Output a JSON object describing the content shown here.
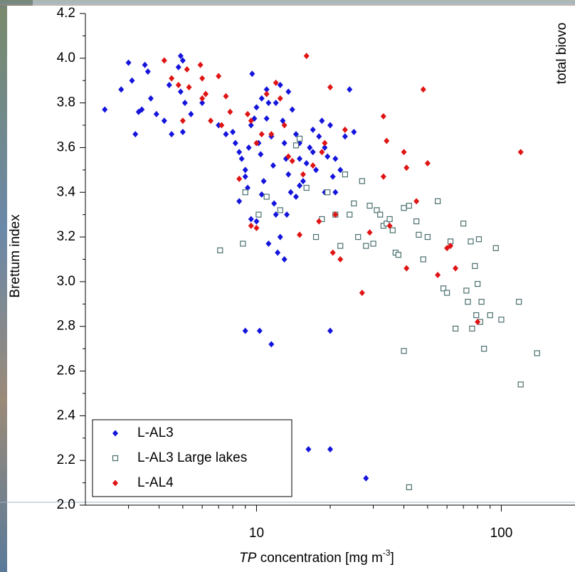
{
  "chart_data": {
    "type": "scatter",
    "ylabel": "Brettum index",
    "xlabel": {
      "italic": "TP",
      "text": " concentration [mg m",
      "sup": "-3",
      "end": "]"
    },
    "side_text": "total biovo",
    "log_x": true,
    "xlim": [
      2,
      200
    ],
    "xticks": [
      10,
      100
    ],
    "ylim": [
      2.0,
      4.2
    ],
    "yticks": [
      {
        "value": 2.0,
        "label": "2.0"
      },
      2.2,
      2.4,
      2.6,
      2.8,
      {
        "value": 3.0,
        "label": "3.0"
      },
      3.2,
      3.4,
      3.6,
      3.8,
      {
        "value": 4.0,
        "label": "4.0"
      },
      4.2
    ],
    "legend": "bottom-left",
    "series": [
      {
        "name": "L-AL3",
        "color": "#1414dc",
        "marker": "diamond",
        "x": [
          2.4,
          2.8,
          3.0,
          3.1,
          3.2,
          3.3,
          3.4,
          3.5,
          3.6,
          3.7,
          3.9,
          4.2,
          4.4,
          4.5,
          4.8,
          4.9,
          4.9,
          5.0,
          5.0,
          5.1,
          5.4,
          6.0,
          7.0,
          7.5,
          8.0,
          8.2,
          8.5,
          8.7,
          9.0,
          9.0,
          9.2,
          9.3,
          9.5,
          9.6,
          9.8,
          10.0,
          10.2,
          10.4,
          10.5,
          10.7,
          11,
          11.2,
          11.5,
          11.7,
          11.8,
          12,
          12.2,
          12.5,
          12.8,
          13,
          13.2,
          13.5,
          13.8,
          14,
          14.5,
          15,
          15.5,
          16,
          16.5,
          17,
          17.5,
          18,
          18.5,
          19,
          19.5,
          20,
          20.5,
          21,
          22,
          23,
          24,
          25,
          9,
          10.3,
          11.5,
          20,
          16.3,
          20,
          28,
          10,
          12.5,
          13,
          11.2,
          13.3,
          14.5,
          15,
          12,
          13.5,
          15,
          17,
          19,
          21,
          10.5,
          11,
          8.5,
          9.5
        ],
        "values": [
          3.77,
          3.86,
          3.98,
          3.9,
          3.66,
          3.76,
          3.77,
          3.97,
          3.94,
          3.82,
          3.75,
          3.72,
          3.88,
          3.66,
          3.96,
          4.01,
          3.85,
          3.99,
          3.67,
          3.8,
          3.75,
          3.8,
          3.7,
          3.66,
          3.67,
          3.62,
          3.58,
          3.55,
          3.5,
          3.47,
          3.42,
          3.6,
          3.7,
          3.93,
          3.73,
          3.78,
          3.62,
          3.57,
          3.39,
          3.45,
          3.86,
          3.8,
          3.65,
          3.52,
          3.35,
          3.3,
          3.13,
          3.88,
          3.72,
          3.62,
          3.55,
          3.48,
          3.4,
          3.77,
          3.66,
          3.55,
          3.45,
          3.53,
          3.6,
          3.68,
          3.5,
          3.65,
          3.72,
          3.6,
          3.56,
          3.7,
          3.47,
          3.55,
          3.5,
          3.65,
          3.86,
          3.67,
          2.78,
          2.78,
          2.72,
          2.78,
          2.25,
          2.25,
          2.12,
          3.27,
          3.2,
          3.1,
          3.17,
          3.3,
          3.38,
          3.43,
          3.8,
          3.85,
          3.62,
          3.58,
          3.4,
          3.4,
          3.82,
          3.73,
          3.36,
          3.28
        ]
      },
      {
        "name": "L-AL3 Large lakes",
        "color": "#4a6e6e",
        "marker": "square",
        "x": [
          7.1,
          8.8,
          9,
          10.2,
          11,
          12.5,
          14.5,
          15,
          16,
          17.5,
          18.5,
          19.5,
          21,
          22,
          23,
          24,
          25,
          26,
          27,
          28,
          29,
          30,
          31,
          32,
          33,
          34,
          35,
          36,
          37,
          38,
          40,
          40,
          42,
          42,
          45,
          46,
          48,
          50,
          55,
          58,
          60,
          62,
          65,
          70,
          72,
          73,
          75,
          76,
          78,
          79,
          80,
          81,
          82,
          83,
          85,
          90,
          95,
          100,
          118,
          120,
          140
        ],
        "values": [
          3.14,
          3.17,
          3.4,
          3.3,
          3.38,
          3.32,
          3.61,
          3.64,
          3.42,
          3.2,
          3.28,
          3.4,
          3.3,
          3.16,
          3.48,
          3.3,
          3.35,
          3.2,
          3.45,
          3.16,
          3.34,
          3.17,
          3.32,
          3.3,
          3.25,
          3.26,
          3.28,
          3.23,
          3.13,
          3.12,
          3.33,
          2.69,
          3.34,
          2.08,
          3.27,
          3.21,
          3.1,
          3.2,
          3.36,
          2.97,
          2.95,
          3.18,
          2.79,
          3.26,
          2.96,
          2.91,
          3.18,
          2.79,
          3.07,
          2.85,
          2.99,
          3.19,
          2.82,
          2.91,
          2.7,
          2.85,
          3.15,
          2.83,
          2.91,
          2.54,
          2.68
        ]
      },
      {
        "name": "L-AL4",
        "color": "#e01414",
        "marker": "diamond",
        "x": [
          4.2,
          4.5,
          4.8,
          5.0,
          5.2,
          5.3,
          5.9,
          6.0,
          6.0,
          6.2,
          6.5,
          7.0,
          7.2,
          7.5,
          7.8,
          8.5,
          9.2,
          9.5,
          10,
          10.5,
          11,
          11.5,
          12,
          12.5,
          13,
          13.5,
          14,
          15,
          15.5,
          16,
          17,
          18,
          18.5,
          19,
          20,
          20.5,
          21,
          22,
          23,
          27,
          29,
          33,
          34,
          40,
          41,
          41,
          45,
          48,
          50,
          55,
          60,
          62,
          65,
          80,
          120,
          9.5,
          10,
          33,
          35
        ],
        "values": [
          3.99,
          3.91,
          3.88,
          3.72,
          3.95,
          3.87,
          3.97,
          3.91,
          3.82,
          3.84,
          3.72,
          3.92,
          3.7,
          3.83,
          3.76,
          3.46,
          3.75,
          3.72,
          3.62,
          3.66,
          3.84,
          3.66,
          3.89,
          3.82,
          3.7,
          3.56,
          3.54,
          3.21,
          3.48,
          4.01,
          3.52,
          3.27,
          3.58,
          3.62,
          3.87,
          3.13,
          3.3,
          3.1,
          3.68,
          2.95,
          3.22,
          3.74,
          3.63,
          3.58,
          3.06,
          3.51,
          3.36,
          3.86,
          3.53,
          3.03,
          3.15,
          3.16,
          3.06,
          2.82,
          3.58,
          3.25,
          3.24,
          3.47,
          3.25
        ]
      }
    ]
  }
}
